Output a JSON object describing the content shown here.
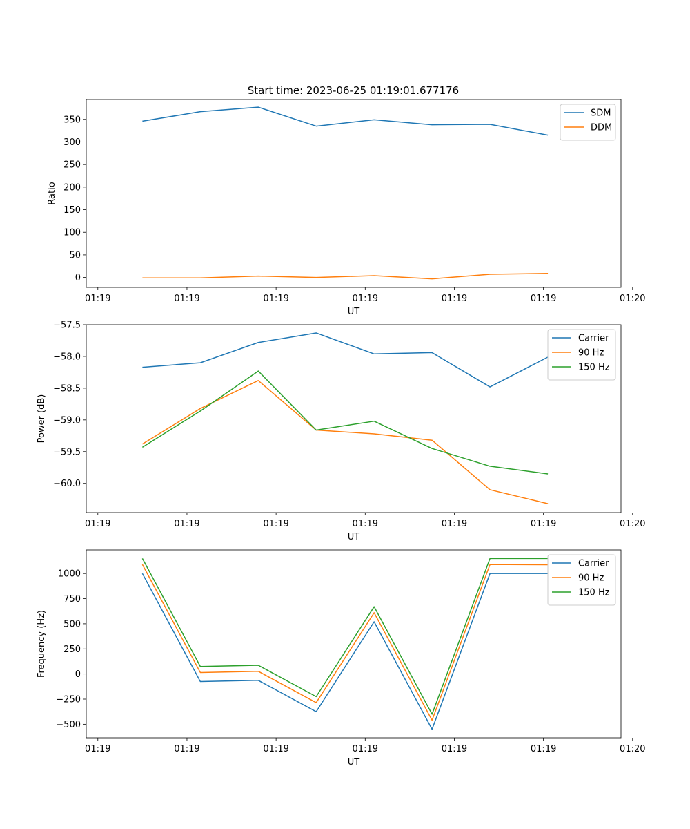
{
  "figure": {
    "title": "Start time: 2023-06-25 01:19:01.677176"
  },
  "colors": {
    "blue": "#1f77b4",
    "orange": "#ff7f0e",
    "green": "#2ca02c"
  },
  "chart_data": [
    {
      "type": "line",
      "title": "Start time: 2023-06-25 01:19:01.677176",
      "xlabel": "UT",
      "ylabel": "Ratio",
      "x": [
        0.5,
        1.15,
        1.8,
        2.45,
        3.1,
        3.75,
        4.4,
        5.05
      ],
      "x_ticks": [
        0,
        1,
        2,
        3,
        4,
        5,
        6
      ],
      "x_tick_labels": [
        "01:19",
        "01:19",
        "01:19",
        "01:19",
        "01:19",
        "01:19",
        "01:20"
      ],
      "xlim": [
        -0.13,
        5.87
      ],
      "ylim": [
        -22,
        394
      ],
      "y_ticks": [
        0,
        50,
        100,
        150,
        200,
        250,
        300,
        350
      ],
      "y_tick_labels": [
        "0",
        "50",
        "100",
        "150",
        "200",
        "250",
        "300",
        "350"
      ],
      "grid": false,
      "legend": "top-right",
      "series": [
        {
          "name": "SDM",
          "color": "#1f77b4",
          "values": [
            346,
            367,
            377,
            335,
            349,
            338,
            339,
            315
          ]
        },
        {
          "name": "DDM",
          "color": "#ff7f0e",
          "values": [
            -1,
            -1,
            3,
            0,
            4,
            -3,
            7,
            9
          ]
        }
      ]
    },
    {
      "type": "line",
      "title": "",
      "xlabel": "UT",
      "ylabel": "Power (dB)",
      "x": [
        0.5,
        1.15,
        1.8,
        2.45,
        3.1,
        3.75,
        4.4,
        5.05
      ],
      "x_ticks": [
        0,
        1,
        2,
        3,
        4,
        5,
        6
      ],
      "x_tick_labels": [
        "01:19",
        "01:19",
        "01:19",
        "01:19",
        "01:19",
        "01:19",
        "01:20"
      ],
      "xlim": [
        -0.13,
        5.87
      ],
      "ylim": [
        -60.46,
        -57.5
      ],
      "y_ticks": [
        -60.0,
        -59.5,
        -59.0,
        -58.5,
        -58.0,
        -57.5
      ],
      "y_tick_labels": [
        "−60.0",
        "−59.5",
        "−59.0",
        "−58.5",
        "−58.0",
        "−57.5"
      ],
      "grid": false,
      "legend": "top-right",
      "series": [
        {
          "name": "Carrier",
          "color": "#1f77b4",
          "values": [
            -58.17,
            -58.1,
            -57.78,
            -57.63,
            -57.96,
            -57.94,
            -58.48,
            -58.01
          ]
        },
        {
          "name": "90 Hz",
          "color": "#ff7f0e",
          "values": [
            -59.38,
            -58.82,
            -58.38,
            -59.16,
            -59.22,
            -59.32,
            -60.1,
            -60.32
          ]
        },
        {
          "name": "150 Hz",
          "color": "#2ca02c",
          "values": [
            -59.43,
            -58.86,
            -58.23,
            -59.16,
            -59.02,
            -59.45,
            -59.73,
            -59.85
          ]
        }
      ]
    },
    {
      "type": "line",
      "title": "",
      "xlabel": "UT",
      "ylabel": "Frequency (Hz)",
      "x": [
        0.5,
        1.15,
        1.8,
        2.45,
        3.1,
        3.75,
        4.4,
        5.05
      ],
      "x_ticks": [
        0,
        1,
        2,
        3,
        4,
        5,
        6
      ],
      "x_tick_labels": [
        "01:19",
        "01:19",
        "01:19",
        "01:19",
        "01:19",
        "01:19",
        "01:20"
      ],
      "xlim": [
        -0.13,
        5.87
      ],
      "ylim": [
        -635,
        1235
      ],
      "y_ticks": [
        -500,
        -250,
        0,
        250,
        500,
        750,
        1000
      ],
      "y_tick_labels": [
        "−500",
        "−250",
        "0",
        "250",
        "500",
        "750",
        "1000"
      ],
      "grid": false,
      "legend": "top-right",
      "series": [
        {
          "name": "Carrier",
          "color": "#1f77b4",
          "values": [
            1000,
            -75,
            -63,
            -375,
            520,
            -550,
            1000,
            1000
          ]
        },
        {
          "name": "90 Hz",
          "color": "#ff7f0e",
          "values": [
            1090,
            15,
            27,
            -285,
            610,
            -460,
            1090,
            1087
          ]
        },
        {
          "name": "150 Hz",
          "color": "#2ca02c",
          "values": [
            1150,
            75,
            87,
            -225,
            670,
            -400,
            1150,
            1150
          ]
        }
      ]
    }
  ]
}
